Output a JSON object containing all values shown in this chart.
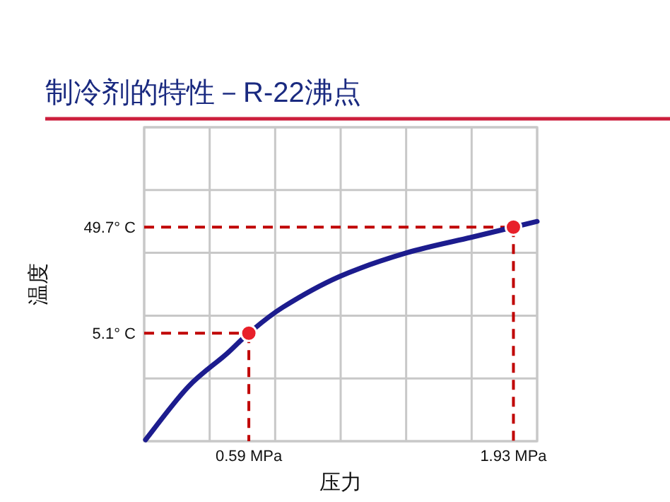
{
  "chart_data": {
    "type": "line",
    "title": "制冷剂的特性－R-22沸点",
    "xlabel": "压力",
    "ylabel": "温度",
    "xlim": [
      0.06,
      2.05
    ],
    "ylim": [
      -40.3,
      91.7
    ],
    "xticks": [
      {
        "value": 0.59,
        "label": "0.59 MPa"
      },
      {
        "value": 1.93,
        "label": "1.93 MPa"
      }
    ],
    "yticks": [
      {
        "value": 5.1,
        "label": "5.1° C"
      },
      {
        "value": 49.7,
        "label": "49.7° C"
      }
    ],
    "grid": true,
    "series": [
      {
        "color": "#1c1c8e",
        "x": [
          0.067,
          0.282,
          0.475,
          0.59,
          0.762,
          1.048,
          1.385,
          1.715,
          1.93,
          2.05
        ],
        "values": [
          -39.7,
          -17.5,
          -3.8,
          5.1,
          16.0,
          28.9,
          38.8,
          45.4,
          49.7,
          52.1
        ],
        "marker": "none"
      },
      {
        "type": "scatter",
        "color": "#e8202a",
        "x": [
          0.59,
          1.93
        ],
        "values": [
          5.1,
          49.7
        ],
        "marker": "circle"
      }
    ],
    "ref_lines": [
      {
        "axis": "y",
        "value": 5.1,
        "color": "#c00000",
        "line_style": "dashed"
      },
      {
        "axis": "y",
        "value": 49.7,
        "color": "#c00000",
        "line_style": "dashed"
      },
      {
        "axis": "x",
        "value": 0.59,
        "color": "#c00000",
        "line_style": "dashed"
      },
      {
        "axis": "x",
        "value": 1.93,
        "color": "#c00000",
        "line_style": "dashed"
      }
    ]
  }
}
